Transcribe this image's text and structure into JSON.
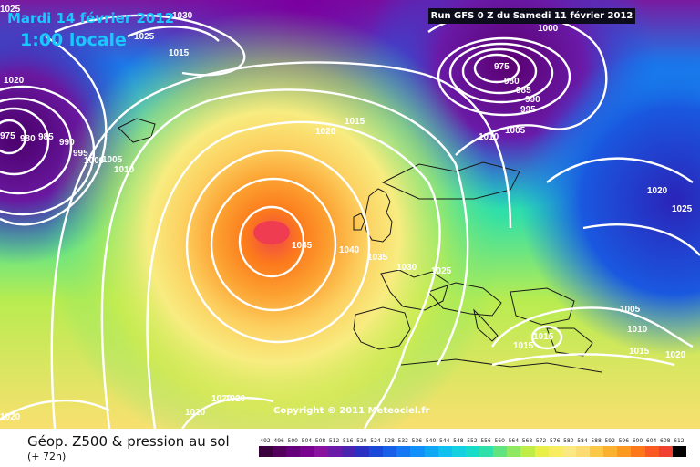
{
  "header": {
    "date": "Mardi 14 février 2012",
    "time": "1:00 locale",
    "run": "Run GFS 0 Z du Samedi 11 février 2012"
  },
  "copyright": "Copyright © 2011 Meteociel.fr",
  "legend": {
    "title": "Géop. Z500 & pression au sol",
    "subtitle": "(+ 72h)",
    "ticks": [
      "492",
      "496",
      "500",
      "504",
      "508",
      "512",
      "516",
      "520",
      "524",
      "528",
      "532",
      "536",
      "540",
      "544",
      "548",
      "552",
      "556",
      "560",
      "564",
      "568",
      "572",
      "576",
      "580",
      "584",
      "588",
      "592",
      "596",
      "600",
      "604",
      "608",
      "612"
    ],
    "colors": [
      "#3a003c",
      "#52005c",
      "#66007a",
      "#7a0090",
      "#8a10a0",
      "#6a1aa8",
      "#4a24b0",
      "#2a30c0",
      "#1a48d8",
      "#1660e8",
      "#1478f2",
      "#1090f8",
      "#10a8f4",
      "#10c0f0",
      "#14d0e0",
      "#18dcc8",
      "#30e0a8",
      "#60e480",
      "#90e860",
      "#c0ec48",
      "#e8f048",
      "#f8ec60",
      "#fce880",
      "#fcdc70",
      "#fcc848",
      "#fcb030",
      "#fc9820",
      "#fc7818",
      "#f85a20",
      "#f04030",
      "#000000"
    ]
  },
  "map": {
    "isobar_labels": [
      "1030",
      "1025",
      "1015",
      "1000",
      "975",
      "980",
      "985",
      "990",
      "995",
      "1020",
      "975",
      "980",
      "985",
      "990",
      "995",
      "1000",
      "1005",
      "1010",
      "1015",
      "1020",
      "1025",
      "1010",
      "1005",
      "1020",
      "1025",
      "1045",
      "1040",
      "1035",
      "1030",
      "1025",
      "1005",
      "1010",
      "1015",
      "1015",
      "1015",
      "1020",
      "1020",
      "1020",
      "1020",
      "1020"
    ]
  }
}
